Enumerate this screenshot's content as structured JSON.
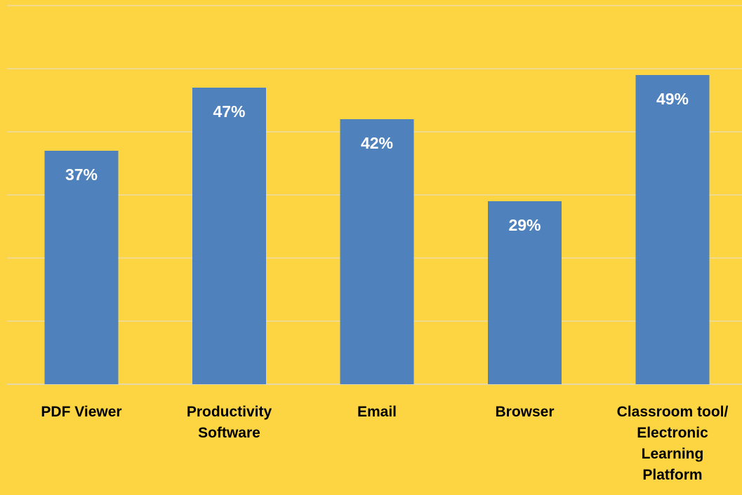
{
  "chart_data": {
    "type": "bar",
    "categories": [
      [
        "PDF Viewer"
      ],
      [
        "Productivity",
        "Software"
      ],
      [
        "Email"
      ],
      [
        "Browser"
      ],
      [
        "Classroom tool/",
        "Electronic",
        "Learning",
        "Platform"
      ]
    ],
    "values": [
      37,
      47,
      42,
      29,
      49
    ],
    "data_labels": [
      "37%",
      "47%",
      "42%",
      "29%",
      "49%"
    ],
    "value_unit": "%",
    "ylim": [
      0,
      60
    ],
    "grid": true,
    "legend": "none",
    "title": "",
    "xlabel": "",
    "ylabel": ""
  },
  "colors": {
    "background": "#FDD441",
    "bar": "#4F81BD",
    "gridline": "#EBDCA4",
    "data_label": "#FFFFFF",
    "category_label": "#000000"
  }
}
